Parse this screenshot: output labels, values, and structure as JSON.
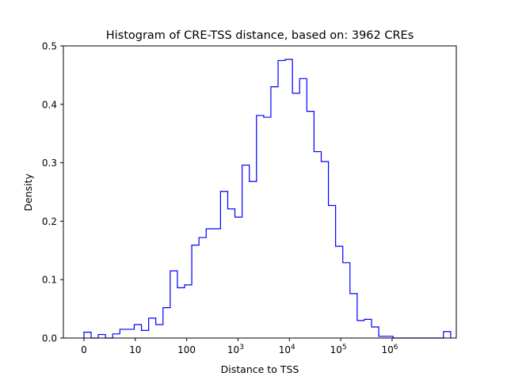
{
  "chart_data": {
    "type": "histogram",
    "title": "Histogram of CRE-TSS distance, based on: 3962 CREs",
    "xlabel": "Distance to TSS",
    "ylabel": "Density",
    "x_scale": "symlog (base 10, linear below 1)",
    "xlim": [
      -0.4,
      7.25
    ],
    "ylim": [
      0,
      0.5
    ],
    "series_color": "#0000ff",
    "grid": false,
    "legend": "none",
    "y_ticks": [
      {
        "value": 0.0,
        "label": "0.0"
      },
      {
        "value": 0.1,
        "label": "0.1"
      },
      {
        "value": 0.2,
        "label": "0.2"
      },
      {
        "value": 0.3,
        "label": "0.3"
      },
      {
        "value": 0.4,
        "label": "0.4"
      },
      {
        "value": 0.5,
        "label": "0.5"
      }
    ],
    "x_ticks": [
      {
        "value": 0,
        "label": "0",
        "sup": ""
      },
      {
        "value": 1,
        "label": "10",
        "sup": ""
      },
      {
        "value": 2,
        "label": "100",
        "sup": ""
      },
      {
        "value": 3,
        "label": "10",
        "sup": "3"
      },
      {
        "value": 4,
        "label": "10",
        "sup": "4"
      },
      {
        "value": 5,
        "label": "10",
        "sup": "5"
      },
      {
        "value": 6,
        "label": "10",
        "sup": "6"
      }
    ],
    "bin_edges": [
      0.0,
      0.14,
      0.28,
      0.42,
      0.56,
      0.7,
      0.84,
      0.98,
      1.12,
      1.26,
      1.4,
      1.54,
      1.68,
      1.82,
      1.96,
      2.1,
      2.24,
      2.38,
      2.52,
      2.66,
      2.8,
      2.94,
      3.08,
      3.22,
      3.36,
      3.5,
      3.64,
      3.78,
      3.92,
      4.06,
      4.2,
      4.34,
      4.48,
      4.62,
      4.76,
      4.9,
      5.04,
      5.18,
      5.32,
      5.46,
      5.6,
      5.74,
      5.88,
      6.02,
      6.16,
      6.3,
      6.44,
      6.58,
      6.72,
      6.86,
      7.0,
      7.14
    ],
    "densities": [
      0.01,
      0.0,
      0.006,
      0.0,
      0.007,
      0.015,
      0.015,
      0.023,
      0.013,
      0.034,
      0.023,
      0.052,
      0.115,
      0.086,
      0.091,
      0.159,
      0.172,
      0.187,
      0.187,
      0.251,
      0.221,
      0.207,
      0.296,
      0.268,
      0.381,
      0.378,
      0.43,
      0.475,
      0.477,
      0.419,
      0.444,
      0.388,
      0.319,
      0.302,
      0.227,
      0.157,
      0.129,
      0.076,
      0.03,
      0.032,
      0.019,
      0.003,
      0.003,
      0.0,
      0.0,
      0.0,
      0.0,
      0.0,
      0.0,
      0.0,
      0.011
    ]
  }
}
